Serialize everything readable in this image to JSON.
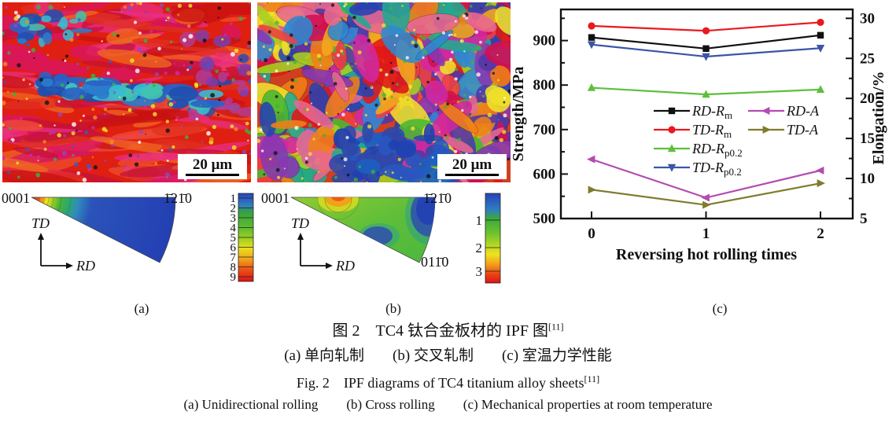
{
  "figure": {
    "panels": {
      "a": {
        "label": "(a)",
        "scale_bar_label": "20 μm",
        "pole_figure": {
          "corner_top_left": "0001",
          "corner_top_right": "1̄21̄0",
          "axis_up": "TD",
          "axis_right": "RD",
          "colorbar_ticks": [
            "1",
            "2",
            "3",
            "4",
            "5",
            "6",
            "7",
            "8",
            "9"
          ]
        }
      },
      "b": {
        "label": "(b)",
        "scale_bar_label": "20 μm",
        "pole_figure": {
          "corner_top_left": "0001",
          "corner_top_right": "1̄21̄0",
          "corner_bottom_right": "011̄0",
          "axis_up": "TD",
          "axis_right": "RD",
          "colorbar_ticks": [
            "1",
            "2",
            "3"
          ]
        }
      },
      "c": {
        "label": "(c)"
      }
    }
  },
  "chart_data": {
    "type": "line",
    "x": [
      0,
      1,
      2
    ],
    "xticks": [
      "0",
      "1",
      "2"
    ],
    "xlabel": "Reversing hot rolling times",
    "ylabel_left": "Strength/MPa",
    "ylabel_right": "Elongation/%",
    "ylim_left": [
      500,
      970
    ],
    "yticks_left": [
      500,
      600,
      700,
      800,
      900
    ],
    "ylim_right": [
      5,
      31.1
    ],
    "yticks_right": [
      5,
      10,
      15,
      20,
      25,
      30
    ],
    "grid": false,
    "legend_position": "inside-center-left",
    "series": [
      {
        "name": "RD-Rm",
        "label_main": "RD-R",
        "label_sub": "m",
        "axis": "left",
        "color": "#101010",
        "marker": "square",
        "values": [
          907,
          882,
          912
        ]
      },
      {
        "name": "TD-Rm",
        "label_main": "TD-R",
        "label_sub": "m",
        "axis": "left",
        "color": "#e9191f",
        "marker": "circle",
        "values": [
          933,
          922,
          941
        ]
      },
      {
        "name": "RD-Rp0.2",
        "label_main": "RD-R",
        "label_sub": "p0.2",
        "axis": "left",
        "color": "#5dbf3b",
        "marker": "triangle-up",
        "values": [
          794,
          779,
          790
        ]
      },
      {
        "name": "TD-Rp0.2",
        "label_main": "TD-R",
        "label_sub": "p0.2",
        "axis": "left",
        "color": "#3b55a5",
        "marker": "triangle-down",
        "values": [
          891,
          864,
          883
        ]
      },
      {
        "name": "RD-A",
        "label_main": "RD-A",
        "label_sub": "",
        "axis": "right",
        "color": "#b44bb1",
        "marker": "triangle-left",
        "values": [
          12.4,
          7.6,
          11.0
        ]
      },
      {
        "name": "TD-A",
        "label_main": "TD-A",
        "label_sub": "",
        "axis": "right",
        "color": "#7f7c2c",
        "marker": "triangle-right",
        "values": [
          8.6,
          6.7,
          9.4
        ]
      }
    ]
  },
  "captions": {
    "zh_title_main": "图 2　TC4 钛合金板材的 IPF 图",
    "zh_title_sup": "[11]",
    "zh_sub_items": [
      "(a) 单向轧制",
      "(b) 交叉轧制",
      "(c) 室温力学性能"
    ],
    "en_title_main": "Fig. 2　IPF diagrams of TC4 titanium alloy sheets",
    "en_title_sup": "[11]",
    "en_sub_items": [
      "(a) Unidirectional rolling",
      "(b) Cross rolling",
      "(c) Mechanical properties at room temperature"
    ]
  },
  "micro_a": {
    "base": "#df1f12",
    "streaks": [
      "#c4123a",
      "#e03020",
      "#ef4f2f",
      "#d81565",
      "#f06a22",
      "#c81212",
      "#ea2e86"
    ],
    "band": [
      "#2a7ccc",
      "#38bcd2",
      "#1f4fae",
      "#41c4ae",
      "#2b62c4"
    ],
    "accents": [
      "#3ab53a",
      "#f2e829",
      "#8a4ec0",
      "#f0901f",
      "#ffffff",
      "#2a62c8",
      "#d02ca0",
      "#111111"
    ]
  },
  "micro_b": {
    "base": "#d04020",
    "palette": [
      "#e01818",
      "#d01050",
      "#ef7f18",
      "#efe02a",
      "#a8d020",
      "#48b830",
      "#22a890",
      "#2f88d0",
      "#2642b2",
      "#5038a8",
      "#8838b0",
      "#d028a0",
      "#ef4040",
      "#f2a81d",
      "#e86890"
    ],
    "blues": [
      "#2040b0",
      "#2a55c0",
      "#1d5fc0",
      "#3048a8"
    ],
    "accents": [
      "#ffffff",
      "#111111",
      "#f2e829",
      "#3ab53a"
    ]
  }
}
